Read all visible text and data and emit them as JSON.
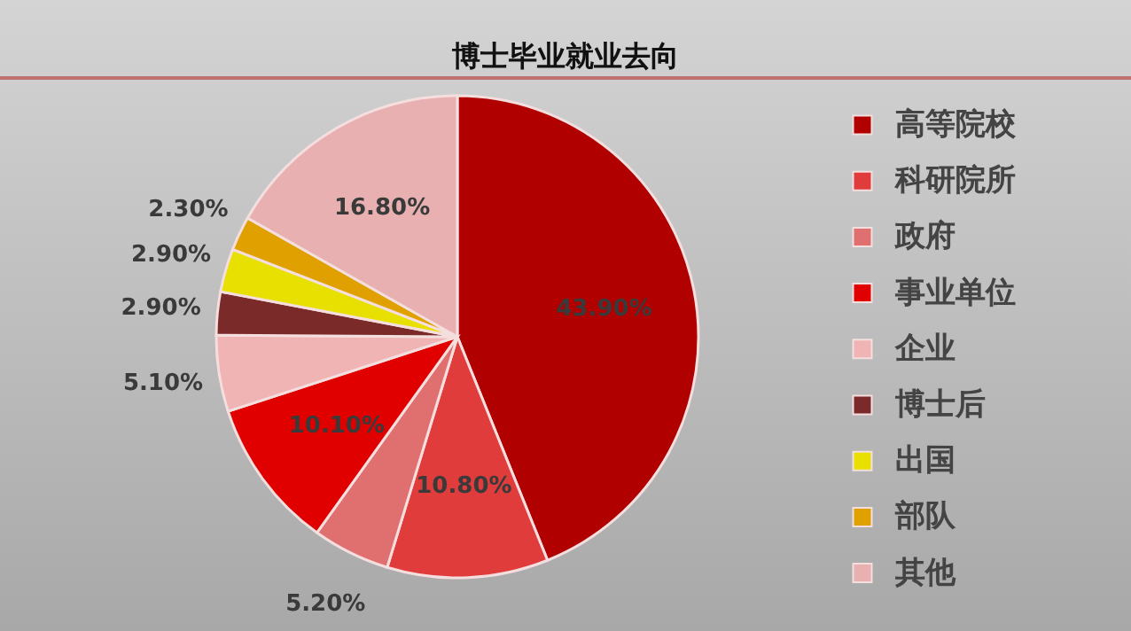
{
  "chart_data": {
    "type": "pie",
    "title": "博士毕业就业去向",
    "categories": [
      "高等院校",
      "科研院所",
      "政府",
      "事业单位",
      "企业",
      "博士后",
      "出国",
      "部队",
      "其他"
    ],
    "values": [
      43.9,
      10.8,
      5.2,
      10.1,
      5.1,
      2.9,
      2.9,
      2.3,
      16.8
    ],
    "value_labels": [
      "43.90%",
      "10.80%",
      "5.20%",
      "10.10%",
      "5.10%",
      "2.90%",
      "2.90%",
      "2.30%",
      "16.80%"
    ],
    "colors": [
      "#b00000",
      "#e03c3c",
      "#e07070",
      "#e00000",
      "#f0b4b4",
      "#7a2a28",
      "#e8e000",
      "#e0a000",
      "#e8b0b0"
    ],
    "legend": "right"
  }
}
